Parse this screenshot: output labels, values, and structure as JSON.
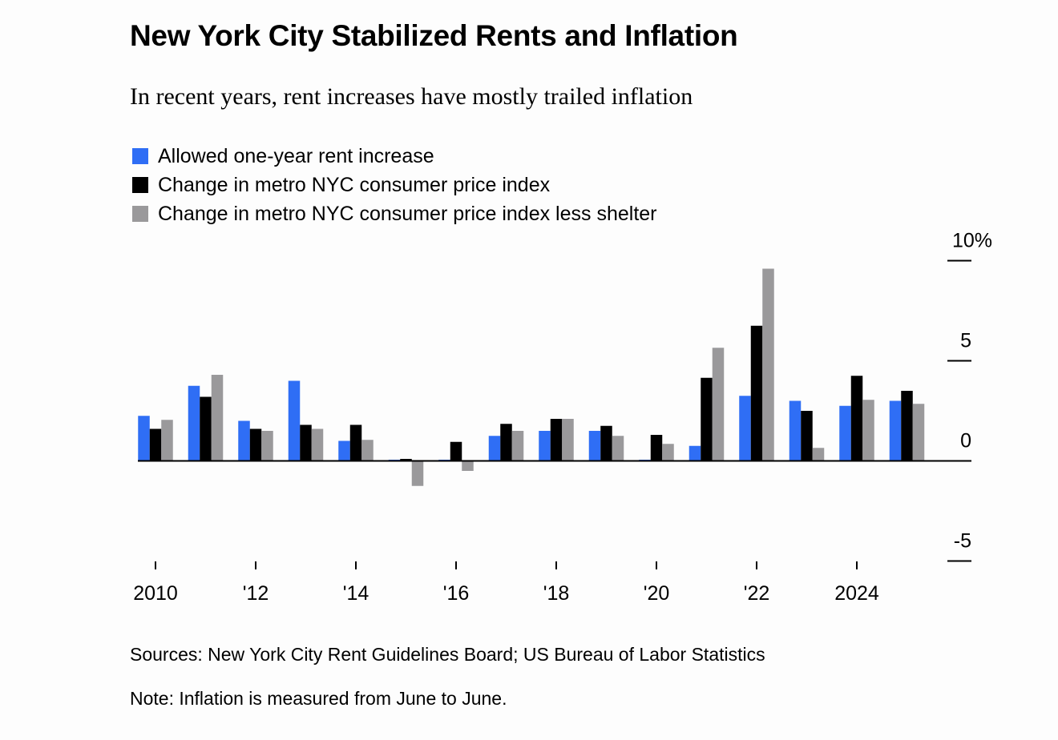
{
  "title": "New York City Stabilized Rents and Inflation",
  "subtitle": "In recent years, rent increases have mostly trailed inflation",
  "sources": "Sources: New York City Rent Guidelines Board; US Bureau of Labor Statistics",
  "note": "Note: Inflation is measured from June to June.",
  "chart_data": {
    "type": "bar",
    "title": "New York City Stabilized Rents and Inflation",
    "subtitle": "In recent years, rent increases have mostly trailed inflation",
    "xlabel": "",
    "ylabel": "",
    "ylim": [
      -5,
      10
    ],
    "yticks": [
      10,
      5,
      0,
      -5
    ],
    "ytick_labels": [
      "10%",
      "5",
      "0",
      "-5"
    ],
    "y_axis_position": "right",
    "grid": false,
    "legend_position": "top-left",
    "categories": [
      "2010",
      "2011",
      "2012",
      "2013",
      "2014",
      "2015",
      "2016",
      "2017",
      "2018",
      "2019",
      "2020",
      "2021",
      "2022",
      "2023",
      "2024",
      "2025"
    ],
    "xticks": [
      "2010",
      "2012",
      "2014",
      "2016",
      "2018",
      "2020",
      "2022",
      "2024"
    ],
    "xtick_labels": [
      "2010",
      "'12",
      "'14",
      "'16",
      "'18",
      "'20",
      "'22",
      "2024"
    ],
    "series": [
      {
        "name": "Allowed one-year rent increase",
        "color": "#2f6ef5",
        "values": [
          2.25,
          3.75,
          2.0,
          4.0,
          1.0,
          0,
          0,
          1.25,
          1.5,
          1.5,
          0,
          0.75,
          3.25,
          3.0,
          2.75,
          3.0
        ]
      },
      {
        "name": "Change in metro NYC consumer price index",
        "color": "#000000",
        "values": [
          1.6,
          3.2,
          1.6,
          1.8,
          1.8,
          0.1,
          0.95,
          1.85,
          2.1,
          1.75,
          1.3,
          4.15,
          6.75,
          2.5,
          4.25,
          3.5
        ]
      },
      {
        "name": "Change in metro NYC consumer price index less shelter",
        "color": "#9a999b",
        "values": [
          2.05,
          4.3,
          1.5,
          1.6,
          1.05,
          -1.25,
          -0.5,
          1.5,
          2.1,
          1.25,
          0.85,
          5.65,
          9.6,
          0.65,
          3.05,
          2.85
        ]
      }
    ]
  }
}
